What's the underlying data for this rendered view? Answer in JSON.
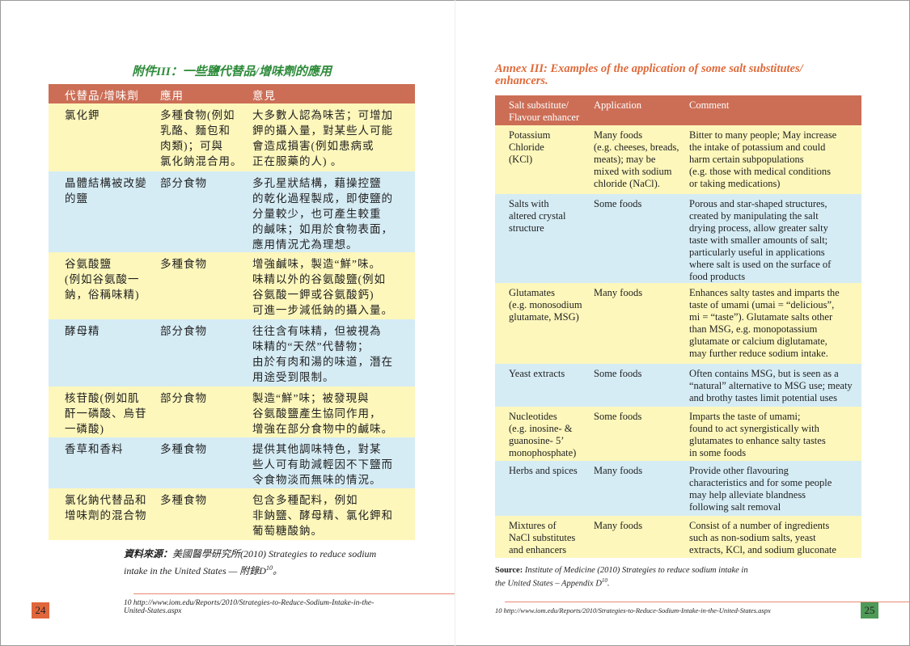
{
  "colors": {
    "header": "#cc6e56",
    "row_yellow": "#fdf7bb",
    "row_blue": "#d5ecf5",
    "zh_title": "#2e8b3a",
    "en_title": "#e06a3a",
    "page_left": "#e0663c",
    "page_right": "#4e9a57"
  },
  "left_page": {
    "title": "附件III：一些鹽代替品/增味劑的應用",
    "headers": [
      "代替品/增味劑",
      "應用",
      "意見"
    ],
    "rows": [
      [
        "氯化鉀",
        "多種食物(例如\n乳酪、麵包和\n肉類)；可與\n氯化鈉混合用。",
        "大多數人認為味苦；可增加\n鉀的攝入量，對某些人可能\n會造成損害(例如患病或\n正在服藥的人) 。"
      ],
      [
        "晶體結構被改變\n的鹽",
        "部分食物",
        "多孔星狀結構，藉操控鹽\n的乾化過程製成，即使鹽的\n分量較少，也可產生較重\n的鹹味；如用於食物表面，\n應用情況尤為理想。"
      ],
      [
        "谷氨酸鹽\n(例如谷氨酸一\n鈉，俗稱味精)",
        "多種食物",
        "增強鹹味，製造“鮮”味。\n味精以外的谷氨酸鹽(例如\n谷氨酸一鉀或谷氨酸鈣)\n可進一步減低鈉的攝入量。"
      ],
      [
        "酵母精",
        "部分食物",
        "往往含有味精，但被視為\n味精的“天然”代替物；\n由於有肉和湯的味道，潛在\n用途受到限制。"
      ],
      [
        "核苷酸(例如肌\n酐一磷酸、烏苷\n一磷酸)",
        "部分食物",
        "製造“鮮”味；被發現與\n谷氨酸鹽產生協同作用，\n增強在部分食物中的鹹味。"
      ],
      [
        "香草和香料",
        "多種食物",
        "提供其他調味特色，對某\n些人可有助減輕因不下鹽而\n令食物淡而無味的情況。"
      ],
      [
        "氯化鈉代替品和\n增味劑的混合物",
        "多種食物",
        "包含多種配料，例如\n非鈉鹽、酵母精、氯化鉀和\n葡萄糖酸鈉。"
      ]
    ],
    "source_label": "資料來源：",
    "source_text": "美國醫學研究所(2010) Strategies to reduce sodium\nintake in the United States — 附錄D",
    "source_sup": "10",
    "source_end": "。",
    "footnote": "10 http://www.iom.edu/Reports/2010/Strategies-to-Reduce-Sodium-Intake-in-the-\n     United-States.aspx",
    "page_number": "24"
  },
  "right_page": {
    "title": "Annex III: Examples of the application of some salt substitutes/\nenhancers.",
    "headers": [
      "Salt substitute/\nFlavour enhancer",
      "Application",
      "Comment"
    ],
    "rows": [
      [
        "Potassium\nChloride\n(KCl)",
        "Many foods\n(e.g. cheeses, breads,\nmeats); may be\nmixed with sodium\nchloride (NaCl).",
        "Bitter to many people; May increase\nthe intake of potassium and could\nharm certain subpopulations\n(e.g. those with medical conditions\nor taking medications)"
      ],
      [
        "Salts with\naltered crystal\nstructure",
        "Some foods",
        "Porous and star-shaped structures,\ncreated by manipulating the salt\ndrying process, allow greater salty\ntaste with smaller amounts of salt;\nparticularly useful in applications\nwhere salt is used on the surface of\nfood products"
      ],
      [
        "Glutamates\n(e.g. monosodium\nglutamate, MSG)",
        "Many foods",
        "Enhances salty tastes and imparts the\ntaste of umami (umai = “delicious”,\nmi = “taste”). Glutamate salts other\nthan MSG, e.g. monopotassium\nglutamate or calcium diglutamate,\nmay further reduce sodium intake."
      ],
      [
        "Yeast extracts",
        "Some foods",
        "Often contains MSG, but is seen as a\n“natural” alternative to MSG use; meaty\nand brothy tastes limit potential uses"
      ],
      [
        "Nucleotides\n(e.g. inosine- &\nguanosine- 5’\nmonophosphate)",
        "Some foods",
        "Imparts the taste of umami;\nfound to act synergistically with\nglutamates to enhance salty tastes\nin some foods"
      ],
      [
        "Herbs and spices",
        "Many foods",
        "Provide other flavouring\ncharacteristics and for some people\nmay help alleviate blandness\nfollowing salt removal"
      ],
      [
        "Mixtures of\nNaCl substitutes\nand enhancers",
        "Many foods",
        "Consist of a number of ingredients\nsuch as non-sodium salts, yeast\nextracts, KCl, and sodium gluconate"
      ]
    ],
    "source_label": "Source:",
    "source_text": " Institute of Medicine (2010) Strategies to reduce sodium intake in\nthe United States – Appendix D",
    "source_sup": "10",
    "source_end": ".",
    "footnote": "10  http://www.iom.edu/Reports/2010/Strategies-to-Reduce-Sodium-Intake-in-the-United-States.aspx",
    "page_number": "25"
  }
}
